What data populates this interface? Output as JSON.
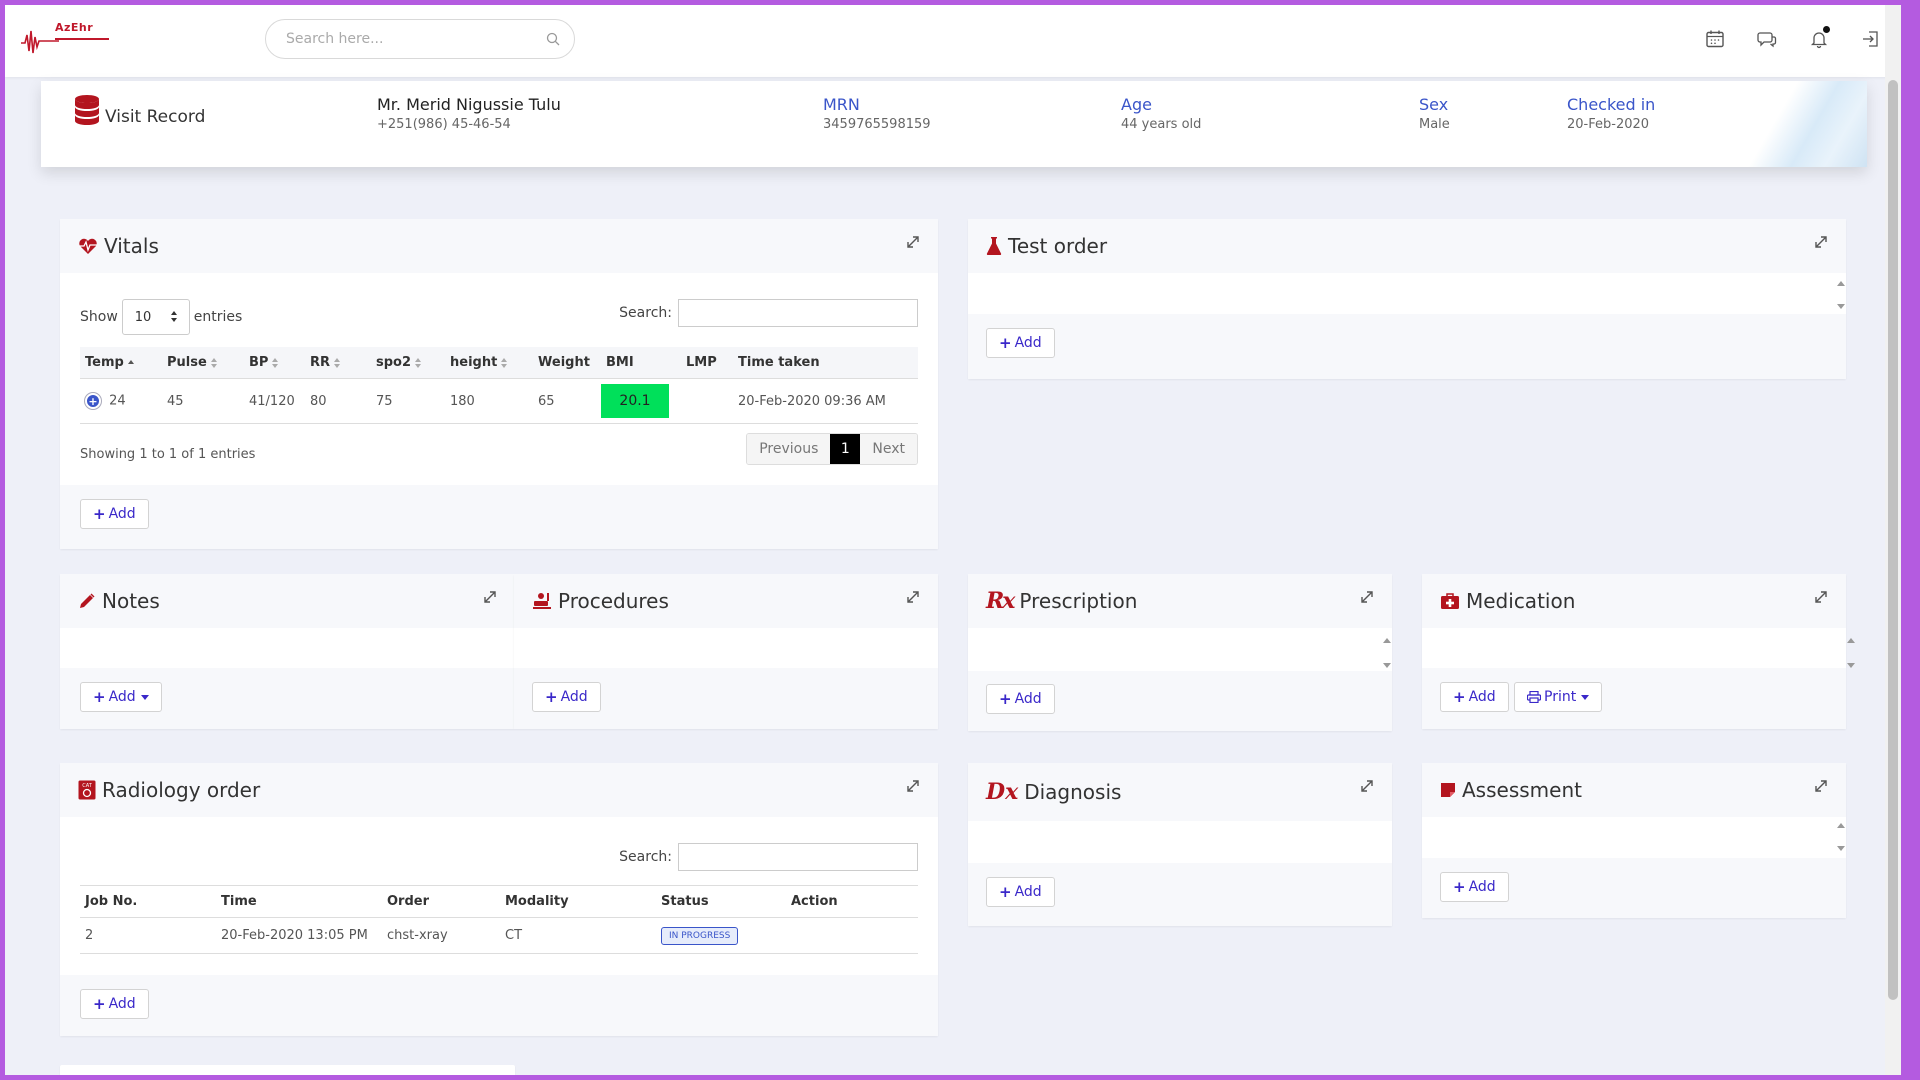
{
  "app": {
    "logo_text": "AzEhr",
    "search_placeholder": "Search here..."
  },
  "topbar_icons": [
    "calendar-icon",
    "chat-icon",
    "bell-icon",
    "logout-icon"
  ],
  "visit": {
    "title": "Visit Record",
    "patient_name": "Mr. Merid Nigussie Tulu",
    "phone": "+251(986) 45-46-54",
    "mrn_label": "MRN",
    "mrn": "3459765598159",
    "age_label": "Age",
    "age": "44 years old",
    "sex_label": "Sex",
    "sex": "Male",
    "checked_label": "Checked in",
    "checked": "20-Feb-2020"
  },
  "vitals": {
    "title": "Vitals",
    "show_label": "Show",
    "entries_value": "10",
    "entries_label": "entries",
    "search_label": "Search:",
    "columns": [
      "Temp",
      "Pulse",
      "BP",
      "RR",
      "spo2",
      "height",
      "Weight",
      "BMI",
      "LMP",
      "Time taken"
    ],
    "rows": [
      {
        "temp": "24",
        "pulse": "45",
        "bp": "41/120",
        "rr": "80",
        "spo2": "75",
        "height": "180",
        "weight": "65",
        "bmi": "20.1",
        "lmp": "",
        "time": "20-Feb-2020 09:36 AM"
      }
    ],
    "bmi_color": "#00e05a",
    "showing": "Showing 1 to 1 of 1 entries",
    "prev": "Previous",
    "page": "1",
    "next": "Next",
    "add": "Add"
  },
  "test_order": {
    "title": "Test order",
    "add": "Add"
  },
  "notes": {
    "title": "Notes",
    "add": "Add"
  },
  "procedures": {
    "title": "Procedures",
    "add": "Add"
  },
  "prescription": {
    "title": "Prescription",
    "add": "Add",
    "icon_text": "Rx"
  },
  "medication": {
    "title": "Medication",
    "add": "Add",
    "print": "Print"
  },
  "radiology": {
    "title": "Radiology order",
    "icon_text": "CAT",
    "search_label": "Search:",
    "columns": [
      "Job No.",
      "Time",
      "Order",
      "Modality",
      "Status",
      "Action"
    ],
    "rows": [
      {
        "job": "2",
        "time": "20-Feb-2020 13:05 PM",
        "order": "chst-xray",
        "modality": "CT",
        "status": "IN PROGRESS",
        "action": ""
      }
    ],
    "add": "Add"
  },
  "diagnosis": {
    "title": "Diagnosis",
    "add": "Add",
    "icon_text": "Dx"
  },
  "assessment": {
    "title": "Assessment",
    "add": "Add"
  },
  "colors": {
    "accent": "#3a28c9",
    "brand_red": "#b3151f",
    "link_blue": "#3a55c9",
    "frame": "#b45be0"
  }
}
